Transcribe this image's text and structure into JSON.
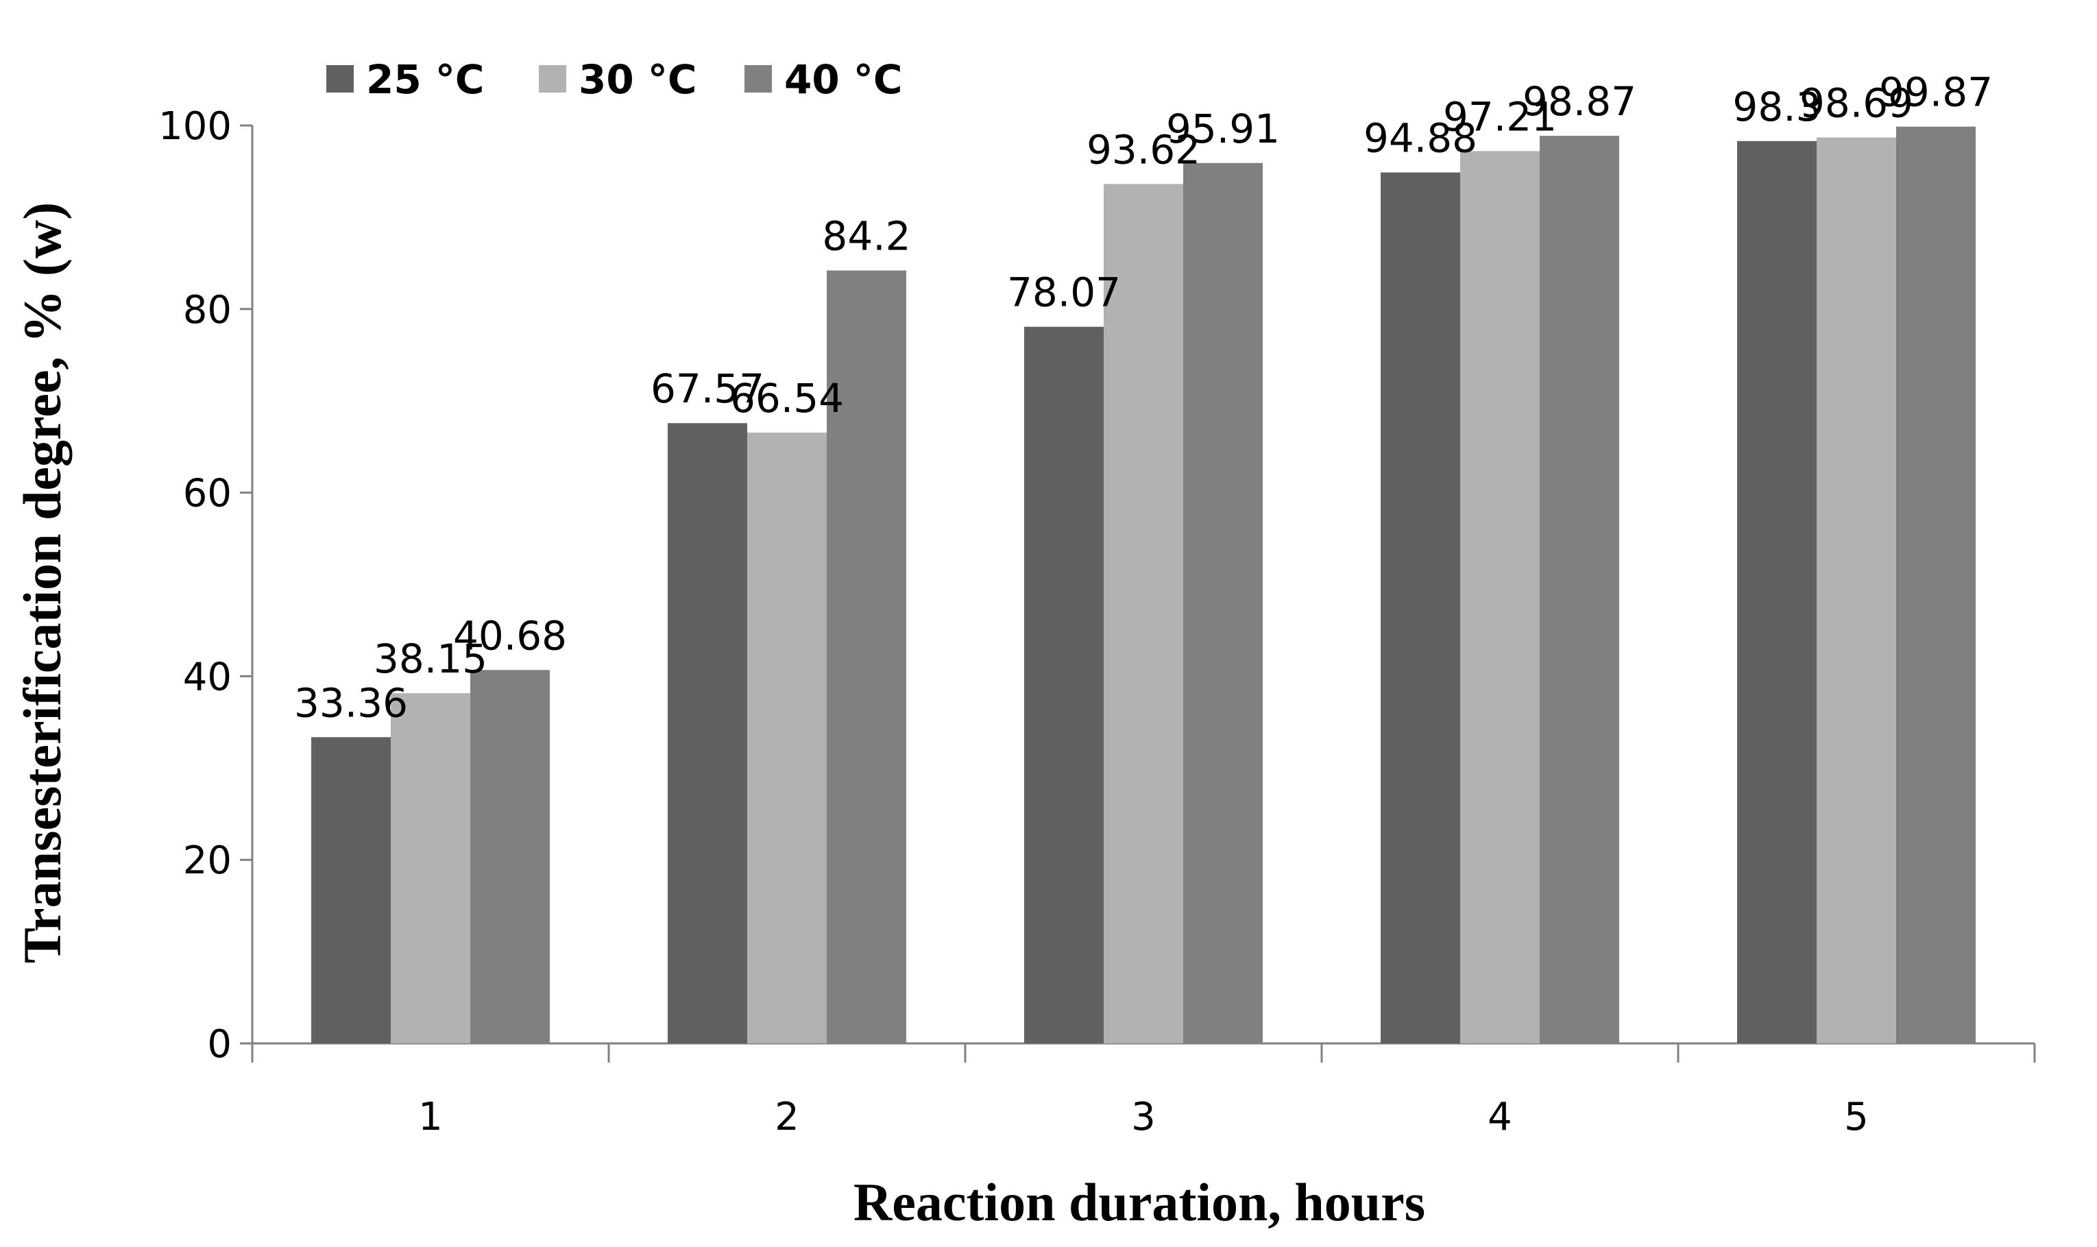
{
  "chart_data": {
    "type": "bar",
    "title": "",
    "xlabel": "Reaction duration, hours",
    "ylabel": "Transesterification degree, % (w)",
    "categories": [
      "1",
      "2",
      "3",
      "4",
      "5"
    ],
    "series": [
      {
        "name": "25 °C",
        "color": "#606060",
        "values": [
          33.36,
          67.57,
          78.07,
          94.88,
          98.3
        ],
        "labels": [
          "33.36",
          "67.57",
          "78.07",
          "94.88",
          "98.3"
        ]
      },
      {
        "name": "30 °C",
        "color": "#b2b2b2",
        "values": [
          38.15,
          66.54,
          93.62,
          97.21,
          98.69
        ],
        "labels": [
          "38.15",
          "66.54",
          "93.62",
          "97.21",
          "98.69"
        ]
      },
      {
        "name": "40 °C",
        "color": "#808080",
        "values": [
          40.68,
          84.2,
          95.91,
          98.87,
          99.87
        ],
        "labels": [
          "40.68",
          "84.2",
          "95.91",
          "98.87",
          "99.87"
        ]
      }
    ],
    "ylim": [
      0,
      100
    ],
    "yticks": [
      0,
      20,
      40,
      60,
      80,
      100
    ],
    "grid": false,
    "legend_position": "top-left"
  }
}
